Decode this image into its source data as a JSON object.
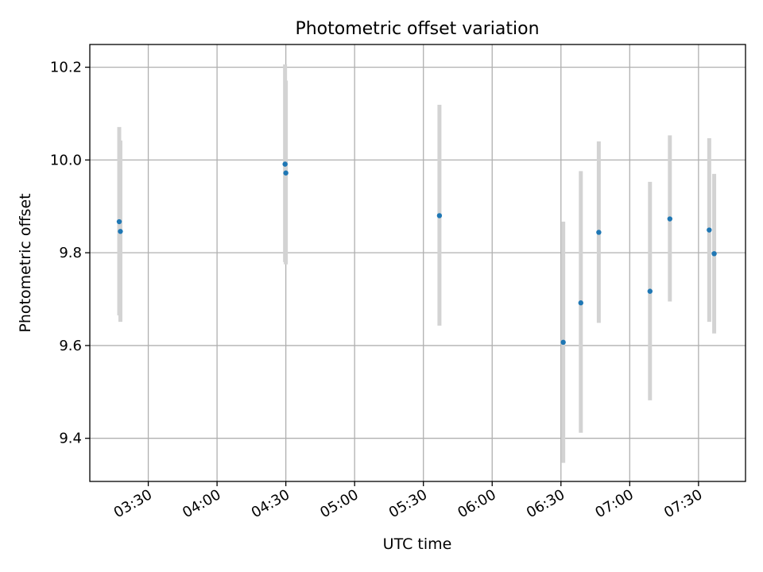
{
  "chart_data": {
    "type": "scatter",
    "title": "Photometric offset variation",
    "xlabel": "UTC time",
    "ylabel": "Photometric offset",
    "grid": true,
    "legend": "none",
    "x_tick_labels": [
      "03:30",
      "04:00",
      "04:30",
      "05:00",
      "05:30",
      "06:00",
      "06:30",
      "07:00",
      "07:30"
    ],
    "y_tick_labels": [
      "9.4",
      "9.6",
      "9.8",
      "10.0",
      "10.2"
    ],
    "y_ticks": [
      9.4,
      9.6,
      9.8,
      10.0,
      10.2
    ],
    "xlim": [
      "03:04:30",
      "07:50:30"
    ],
    "ylim": [
      9.307,
      10.249
    ],
    "colors": {
      "marker": "#1f77b4",
      "errorbar": "#d3d3d3",
      "grid": "#b0b0b0"
    },
    "points": [
      {
        "time": "03:17:20",
        "y": 9.867,
        "yerr_low": 9.665,
        "yerr_high": 10.071
      },
      {
        "time": "03:17:50",
        "y": 9.846,
        "yerr_low": 9.651,
        "yerr_high": 10.042
      },
      {
        "time": "04:29:40",
        "y": 9.991,
        "yerr_low": 9.78,
        "yerr_high": 10.206
      },
      {
        "time": "04:30:00",
        "y": 9.972,
        "yerr_low": 9.775,
        "yerr_high": 10.171
      },
      {
        "time": "05:37:00",
        "y": 9.88,
        "yerr_low": 9.643,
        "yerr_high": 10.119
      },
      {
        "time": "06:31:00",
        "y": 9.607,
        "yerr_low": 9.347,
        "yerr_high": 9.867
      },
      {
        "time": "06:38:40",
        "y": 9.692,
        "yerr_low": 9.412,
        "yerr_high": 9.976
      },
      {
        "time": "06:46:30",
        "y": 9.844,
        "yerr_low": 9.649,
        "yerr_high": 10.04
      },
      {
        "time": "07:08:50",
        "y": 9.717,
        "yerr_low": 9.482,
        "yerr_high": 9.953
      },
      {
        "time": "07:17:30",
        "y": 9.873,
        "yerr_low": 9.695,
        "yerr_high": 10.053
      },
      {
        "time": "07:34:40",
        "y": 9.849,
        "yerr_low": 9.651,
        "yerr_high": 10.047
      },
      {
        "time": "07:36:50",
        "y": 9.798,
        "yerr_low": 9.626,
        "yerr_high": 9.97
      }
    ]
  }
}
